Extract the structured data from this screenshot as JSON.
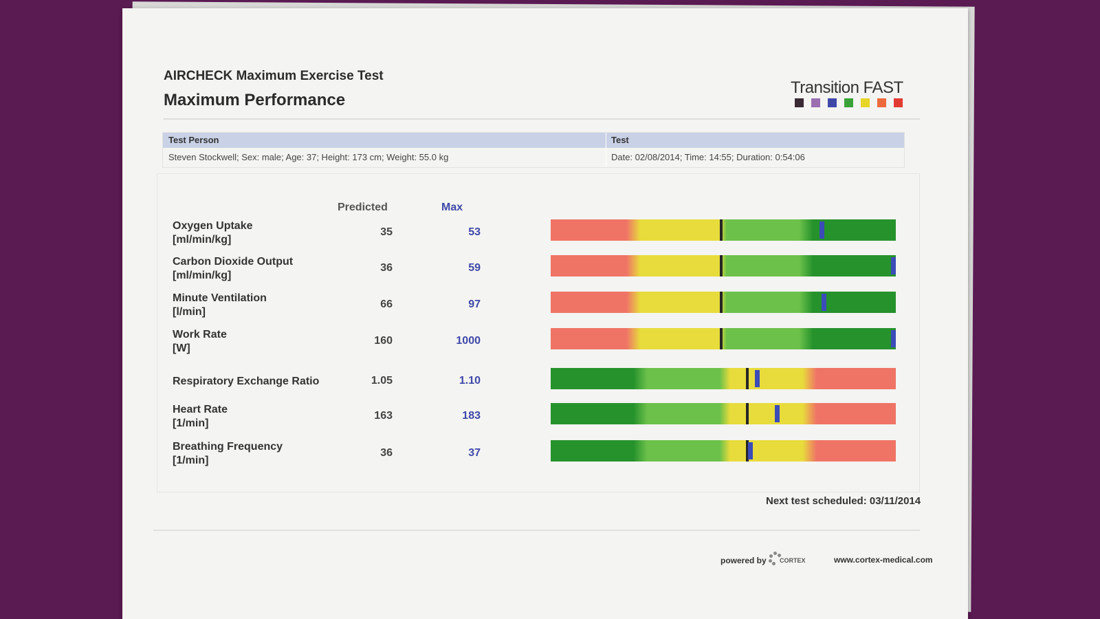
{
  "header": {
    "title": "AIRCHECK Maximum Exercise Test",
    "subtitle": "Maximum Performance"
  },
  "logo": {
    "text": "Transition FAST",
    "squares": [
      "#3a2a33",
      "#9b6fb0",
      "#3f48a9",
      "#39a238",
      "#e7d528",
      "#ec6a3c",
      "#e23b34"
    ]
  },
  "info": {
    "person_label": "Test Person",
    "person_value": "Steven Stockwell; Sex: male; Age: 37; Height: 173 cm; Weight: 55.0 kg",
    "test_label": "Test",
    "test_value": "Date: 02/08/2014; Time: 14:55; Duration: 0:54:06"
  },
  "columns": {
    "predicted": "Predicted",
    "max": "Max"
  },
  "metrics": [
    {
      "label": "Oxygen Uptake",
      "unit": "[ml/min/kg]",
      "predicted": "35",
      "max": "53",
      "scale": "up",
      "predicted_pos": 0.495,
      "max_pos": 0.785
    },
    {
      "label": "Carbon Dioxide Output",
      "unit": "[ml/min/kg]",
      "predicted": "36",
      "max": "59",
      "scale": "up",
      "predicted_pos": 0.495,
      "max_pos": 0.995
    },
    {
      "label": "Minute Ventilation",
      "unit": "[l/min]",
      "predicted": "66",
      "max": "97",
      "scale": "up",
      "predicted_pos": 0.495,
      "max_pos": 0.79
    },
    {
      "label": "Work Rate",
      "unit": "[W]",
      "predicted": "160",
      "max": "1000",
      "scale": "up",
      "predicted_pos": 0.495,
      "max_pos": 0.995
    },
    {
      "label": "Respiratory Exchange Ratio",
      "unit": "",
      "predicted": "1.05",
      "max": "1.10",
      "scale": "down",
      "predicted_pos": 0.57,
      "max_pos": 0.598
    },
    {
      "label": "Heart Rate",
      "unit": "[1/min]",
      "predicted": "163",
      "max": "183",
      "scale": "down",
      "predicted_pos": 0.57,
      "max_pos": 0.655
    },
    {
      "label": "Breathing Frequency",
      "unit": "[1/min]",
      "predicted": "36",
      "max": "37",
      "scale": "down",
      "predicted_pos": 0.57,
      "max_pos": 0.578
    }
  ],
  "footer": {
    "next_test": "Next test scheduled: 03/11/2014",
    "powered_by": "powered by",
    "brand": "CORTEX",
    "url": "www.cortex-medical.com"
  }
}
